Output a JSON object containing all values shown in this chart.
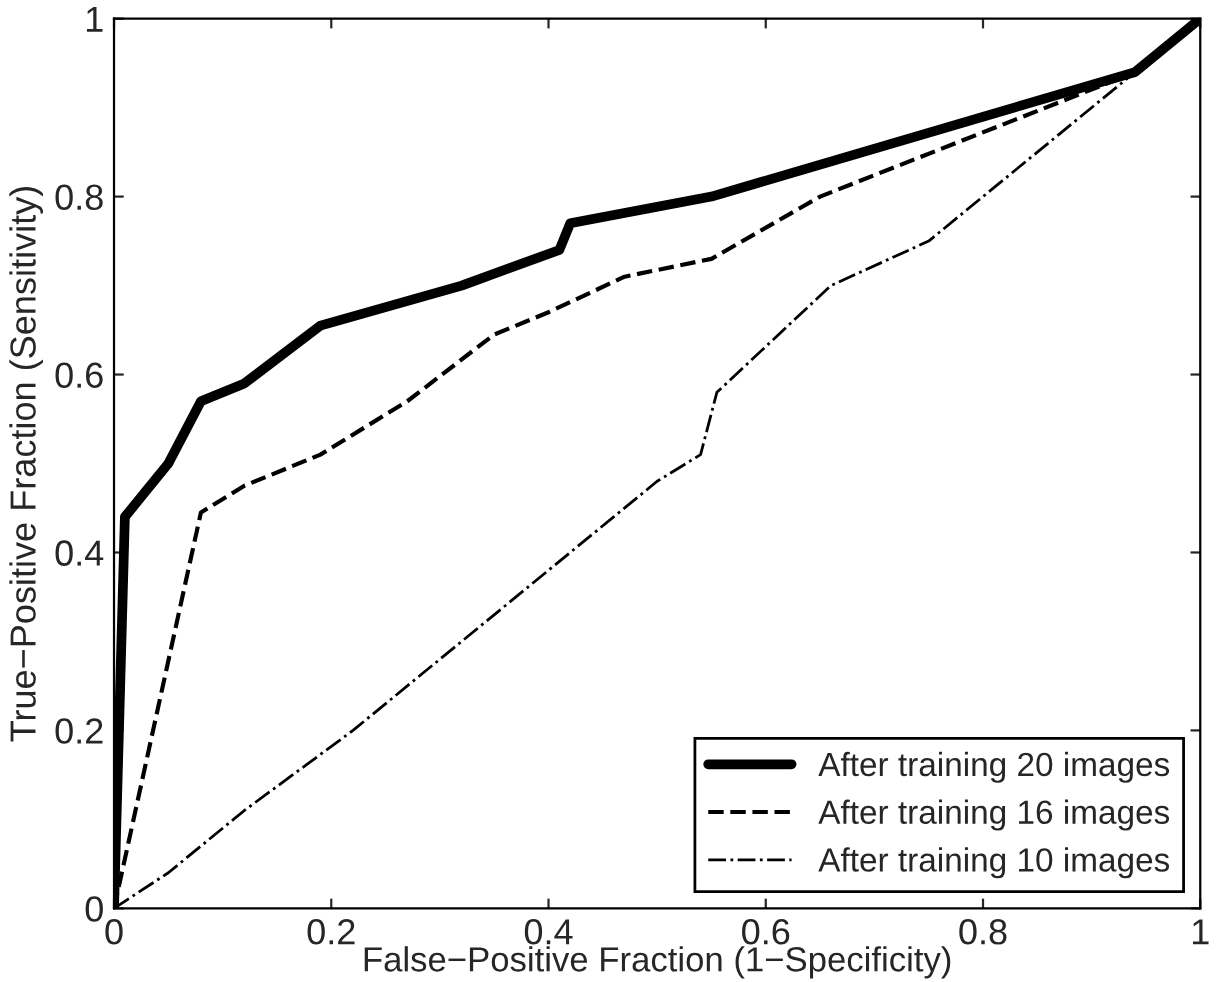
{
  "chart_data": {
    "type": "line",
    "xlabel": "False−Positive Fraction (1−Specificity)",
    "ylabel": "True−Positive Fraction (Sensitivity)",
    "xlim": [
      0,
      1
    ],
    "ylim": [
      0,
      1
    ],
    "xticks": [
      0,
      0.2,
      0.4,
      0.6,
      0.8,
      1
    ],
    "yticks": [
      0,
      0.2,
      0.4,
      0.6,
      0.8,
      1
    ],
    "legend": "bottom right",
    "series": [
      {
        "name": "After training 20 images",
        "color": "#000000",
        "line_style": "solid",
        "x": [
          0,
          0.01,
          0.05,
          0.08,
          0.12,
          0.19,
          0.32,
          0.41,
          0.42,
          0.55,
          0.94,
          1
        ],
        "values": [
          0,
          0.44,
          0.5,
          0.57,
          0.59,
          0.655,
          0.7,
          0.74,
          0.77,
          0.8,
          0.94,
          1
        ]
      },
      {
        "name": "After training 16 images",
        "color": "#000000",
        "line_style": "dashed",
        "x": [
          0,
          0.08,
          0.12,
          0.19,
          0.27,
          0.35,
          0.4,
          0.47,
          0.55,
          0.65,
          0.92,
          0.94,
          1
        ],
        "values": [
          0,
          0.445,
          0.475,
          0.51,
          0.57,
          0.645,
          0.67,
          0.71,
          0.73,
          0.8,
          0.93,
          0.94,
          1
        ]
      },
      {
        "name": "After training 10 images",
        "color": "#000000",
        "line_style": "dashdot",
        "x": [
          0,
          0.05,
          0.12,
          0.22,
          0.32,
          0.41,
          0.46,
          0.5,
          0.54,
          0.555,
          0.66,
          0.75,
          0.87,
          0.94,
          1
        ],
        "values": [
          0,
          0.04,
          0.11,
          0.2,
          0.3,
          0.39,
          0.44,
          0.48,
          0.51,
          0.58,
          0.7,
          0.75,
          0.87,
          0.94,
          1
        ]
      }
    ]
  }
}
